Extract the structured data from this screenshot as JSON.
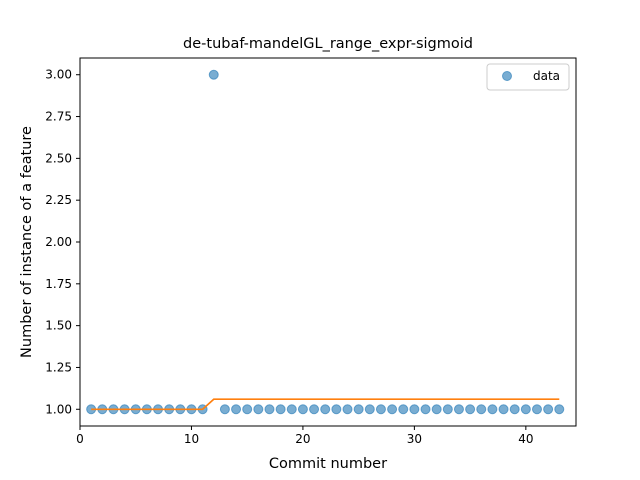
{
  "chart_data": {
    "type": "scatter",
    "title": "de-tubaf-mandelGL_range_expr-sigmoid",
    "xlabel": "Commit number",
    "ylabel": "Number of instance of a feature",
    "xlim": [
      0,
      44.5
    ],
    "ylim": [
      0.9,
      3.1
    ],
    "xticks": [
      0,
      10,
      20,
      30,
      40
    ],
    "yticks": [
      1.0,
      1.25,
      1.5,
      1.75,
      2.0,
      2.25,
      2.5,
      2.75,
      3.0
    ],
    "ytick_labels": [
      "1.00",
      "1.25",
      "1.50",
      "1.75",
      "2.00",
      "2.25",
      "2.50",
      "2.75",
      "3.00"
    ],
    "legend": {
      "position": "top-right",
      "entries": [
        "data"
      ]
    },
    "grid": false,
    "series": [
      {
        "name": "data",
        "kind": "scatter",
        "color": "#1f77b4",
        "x": [
          1,
          2,
          3,
          4,
          5,
          6,
          7,
          8,
          9,
          10,
          11,
          12,
          13,
          14,
          15,
          16,
          17,
          18,
          19,
          20,
          21,
          22,
          23,
          24,
          25,
          26,
          27,
          28,
          29,
          30,
          31,
          32,
          33,
          34,
          35,
          36,
          37,
          38,
          39,
          40,
          41,
          42,
          43
        ],
        "y": [
          1,
          1,
          1,
          1,
          1,
          1,
          1,
          1,
          1,
          1,
          1,
          3,
          1,
          1,
          1,
          1,
          1,
          1,
          1,
          1,
          1,
          1,
          1,
          1,
          1,
          1,
          1,
          1,
          1,
          1,
          1,
          1,
          1,
          1,
          1,
          1,
          1,
          1,
          1,
          1,
          1,
          1,
          1
        ]
      },
      {
        "kind": "line",
        "color": "#ff7f0e",
        "x": [
          1,
          11,
          12,
          43
        ],
        "y": [
          1.0,
          1.0,
          1.06,
          1.06
        ]
      }
    ]
  }
}
